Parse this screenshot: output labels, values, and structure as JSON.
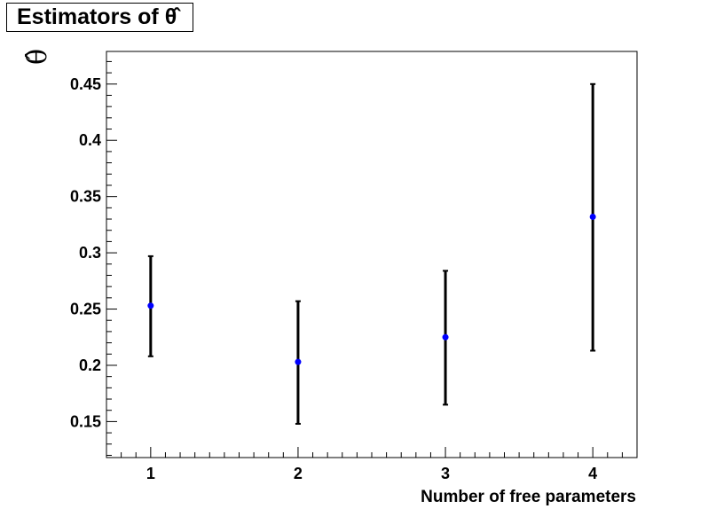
{
  "chart_data": {
    "type": "scatter",
    "title": "Estimators of θ̂",
    "xlabel": "Number of free parameters",
    "ylabel": "θ̂",
    "xlim": [
      0.7,
      4.3
    ],
    "ylim": [
      0.118,
      0.479
    ],
    "x_ticks": [
      1,
      2,
      3,
      4
    ],
    "y_ticks": [
      0.15,
      0.2,
      0.25,
      0.3,
      0.35,
      0.4,
      0.45
    ],
    "y_tick_labels": [
      "0.15",
      "0.2",
      "0.25",
      "0.3",
      "0.35",
      "0.4",
      "0.45"
    ],
    "points": [
      {
        "x": 1,
        "y": 0.253,
        "y_low": 0.208,
        "y_high": 0.297
      },
      {
        "x": 2,
        "y": 0.203,
        "y_low": 0.148,
        "y_high": 0.257
      },
      {
        "x": 3,
        "y": 0.225,
        "y_low": 0.165,
        "y_high": 0.284
      },
      {
        "x": 4,
        "y": 0.332,
        "y_low": 0.213,
        "y_high": 0.45
      }
    ],
    "marker_color": "#0000ff",
    "errorbar_color": "#000000",
    "grid": false
  }
}
